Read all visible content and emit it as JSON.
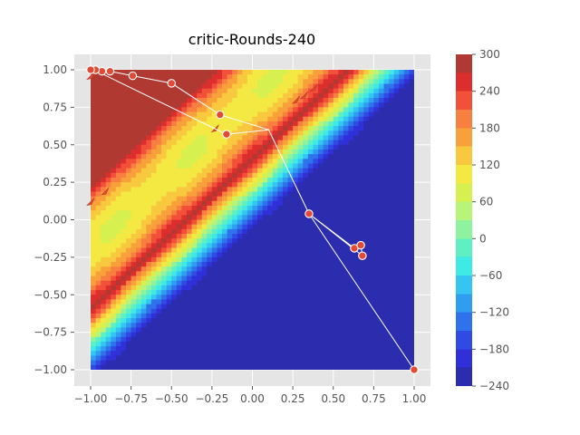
{
  "chart_data": {
    "type": "contour",
    "title": "critic-Rounds-240",
    "xlabel": "",
    "ylabel": "",
    "xlim": [
      -1.1,
      1.1
    ],
    "ylim": [
      -1.1,
      1.1
    ],
    "xticks": [
      "−1.00",
      "−0.75",
      "−0.50",
      "−0.25",
      "0.00",
      "0.25",
      "0.50",
      "0.75",
      "1.00"
    ],
    "yticks": [
      "1.00",
      "0.75",
      "0.50",
      "0.25",
      "0.00",
      "−0.25",
      "−0.50",
      "−0.75",
      "−1.00"
    ],
    "grid": true,
    "colorbar": {
      "ticks": [
        "300",
        "240",
        "180",
        "120",
        "60",
        "0",
        "−60",
        "−120",
        "−180",
        "−240"
      ],
      "levels": [
        300,
        270,
        240,
        210,
        180,
        150,
        120,
        90,
        60,
        30,
        0,
        -30,
        -60,
        -90,
        -120,
        -150,
        -180,
        -210,
        -240
      ],
      "colors": [
        "#b03a32",
        "#dd2e2e",
        "#f3503a",
        "#f77f3f",
        "#f8a13a",
        "#f8c93e",
        "#f4e843",
        "#d6f04f",
        "#b8f47a",
        "#8ff29f",
        "#5ef0c3",
        "#3fe9e6",
        "#34c5f2",
        "#2f9df0",
        "#2e73eb",
        "#2f4be4",
        "#3030d8",
        "#2c2caf"
      ],
      "colormap": "jet"
    },
    "field": {
      "domain": [
        -1,
        1
      ],
      "ridge_line": "y = x + 0.4",
      "peak_value": 300,
      "min_value": -240
    },
    "trajectory": [
      [
        1.0,
        -1.0
      ],
      [
        0.35,
        0.04
      ],
      [
        0.63,
        -0.19
      ],
      [
        0.67,
        -0.17
      ],
      [
        0.68,
        -0.24
      ],
      [
        0.35,
        0.04
      ],
      [
        0.1,
        0.6
      ],
      [
        -0.2,
        0.7
      ],
      [
        -0.5,
        0.91
      ],
      [
        -0.74,
        0.96
      ],
      [
        -0.88,
        0.99
      ],
      [
        -0.93,
        0.99
      ],
      [
        -0.97,
        1.0
      ],
      [
        -1.0,
        1.0
      ],
      [
        -0.96,
        0.99
      ],
      [
        -0.16,
        0.57
      ],
      [
        0.1,
        0.6
      ]
    ],
    "markers": [
      [
        1.0,
        -1.0
      ],
      [
        0.35,
        0.04
      ],
      [
        0.63,
        -0.19
      ],
      [
        0.67,
        -0.17
      ],
      [
        0.68,
        -0.24
      ],
      [
        -0.16,
        0.57
      ],
      [
        -0.2,
        0.7
      ],
      [
        -0.5,
        0.91
      ],
      [
        -0.74,
        0.96
      ],
      [
        -0.88,
        0.99
      ],
      [
        -0.93,
        0.99
      ],
      [
        -0.97,
        1.0
      ],
      [
        -1.0,
        1.0
      ]
    ],
    "arrows": [
      [
        0.27,
        0.8
      ],
      [
        0.32,
        0.83
      ],
      [
        0.38,
        0.88
      ],
      [
        -0.23,
        0.61
      ],
      [
        -0.91,
        0.19
      ],
      [
        -1.0,
        0.12
      ],
      [
        -1.0,
        0.96
      ]
    ]
  }
}
